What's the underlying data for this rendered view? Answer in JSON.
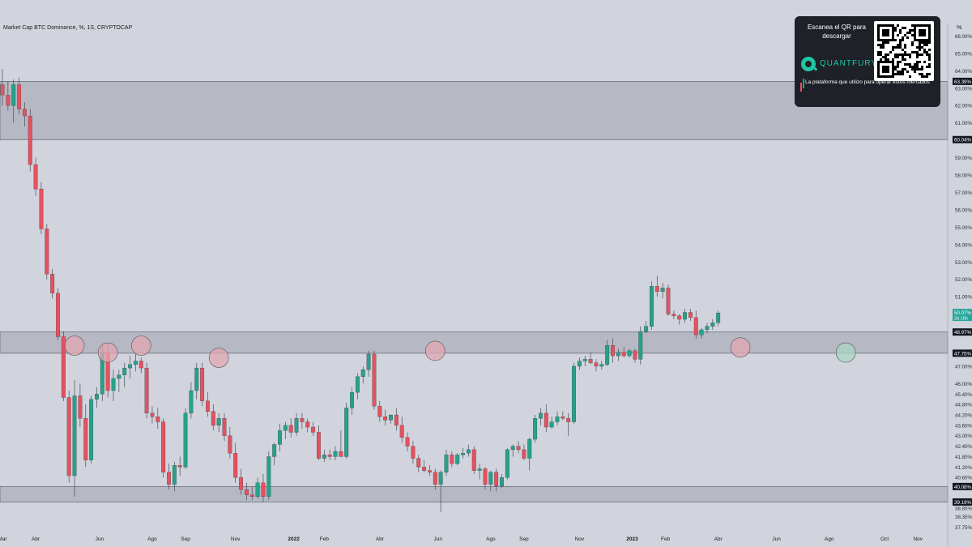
{
  "chart_title": "Market Cap BTC Dominance, %, 1S, CRYPTOCAP",
  "unit_label": "%",
  "promo": {
    "heading": "Escanea el QR para descargar",
    "brand": "QUANTFURY",
    "tagline": "La plataforma que utilizo para operar estos mercados",
    "icon": "quantfury-logo-icon"
  },
  "colors": {
    "background": "#d1d4dc",
    "bull": "#26a18a",
    "bear": "#e5515f",
    "zone": "#b6b9c3",
    "marker_red": "#e2a7b1",
    "marker_green": "#a9d6c1",
    "label_dark": "#131722",
    "price_label": "#26a69a"
  },
  "chart_data": {
    "type": "candlestick",
    "timeframe": "1S",
    "y_axis_unit": "%",
    "y_range": [
      37.3,
      66.3
    ],
    "y_ticks": [
      "37.75%",
      "38.35%",
      "38.85%",
      "39.40%",
      "40.60%",
      "41.20%",
      "41.80%",
      "42.40%",
      "43.00%",
      "43.60%",
      "44.20%",
      "44.80%",
      "45.40%",
      "46.00%",
      "47.00%",
      "48.00%",
      "49.00%",
      "50.00%",
      "51.00%",
      "52.00%",
      "53.00%",
      "54.00%",
      "55.00%",
      "56.00%",
      "57.00%",
      "58.00%",
      "59.00%",
      "61.00%",
      "62.00%",
      "63.00%",
      "64.00%",
      "65.00%",
      "66.00%"
    ],
    "y_tick_values": [
      37.75,
      38.35,
      38.85,
      39.4,
      40.6,
      41.2,
      41.8,
      42.4,
      43.0,
      43.6,
      44.2,
      44.8,
      45.4,
      46.0,
      47.0,
      48.0,
      49.0,
      50.0,
      51.0,
      52.0,
      53.0,
      54.0,
      55.0,
      56.0,
      57.0,
      58.0,
      59.0,
      61.0,
      62.0,
      63.0,
      64.0,
      65.0,
      66.0
    ],
    "x_labels": [
      {
        "t": 0,
        "label": "Mar",
        "bold": false
      },
      {
        "t": 6,
        "label": "Abr",
        "bold": false
      },
      {
        "t": 17.5,
        "label": "Jun",
        "bold": false
      },
      {
        "t": 27,
        "label": "Ago",
        "bold": false
      },
      {
        "t": 33,
        "label": "Sep",
        "bold": false
      },
      {
        "t": 42,
        "label": "Nov",
        "bold": false
      },
      {
        "t": 52.5,
        "label": "2022",
        "bold": true
      },
      {
        "t": 58,
        "label": "Feb",
        "bold": false
      },
      {
        "t": 68,
        "label": "Abr",
        "bold": false
      },
      {
        "t": 78.5,
        "label": "Jun",
        "bold": false
      },
      {
        "t": 88,
        "label": "Ago",
        "bold": false
      },
      {
        "t": 94,
        "label": "Sep",
        "bold": false
      },
      {
        "t": 104,
        "label": "Nov",
        "bold": false
      },
      {
        "t": 113.5,
        "label": "2023",
        "bold": true
      },
      {
        "t": 119.5,
        "label": "Feb",
        "bold": false
      },
      {
        "t": 129,
        "label": "Abr",
        "bold": false
      },
      {
        "t": 139.5,
        "label": "Jun",
        "bold": false
      },
      {
        "t": 149,
        "label": "Ago",
        "bold": false
      },
      {
        "t": 159,
        "label": "Oct",
        "bold": false
      },
      {
        "t": 165,
        "label": "Nov",
        "bold": false
      }
    ],
    "zones": [
      {
        "low": 60.04,
        "high": 63.39,
        "low_label": "60.04%",
        "high_label": "63.39%"
      },
      {
        "low": 47.75,
        "high": 48.97,
        "low_label": "47.75%",
        "high_label": "48.97%"
      },
      {
        "low": 39.19,
        "high": 40.08,
        "low_label": "39.19%",
        "high_label": "40.08%"
      }
    ],
    "last_price": {
      "value": 50.07,
      "label": "50.07%",
      "countdown": "2d 15h"
    },
    "marked_touches": [
      {
        "t": 13,
        "y": 48.0,
        "color": "red"
      },
      {
        "t": 19,
        "y": 47.6,
        "color": "red"
      },
      {
        "t": 25,
        "y": 48.0,
        "color": "red"
      },
      {
        "t": 39,
        "y": 47.3,
        "color": "red"
      },
      {
        "t": 78,
        "y": 47.7,
        "color": "red"
      },
      {
        "t": 133,
        "y": 47.9,
        "color": "red"
      },
      {
        "t": 152,
        "y": 47.6,
        "color": "green"
      }
    ],
    "candles": [
      [
        63.2,
        64.1,
        62.0,
        62.6
      ],
      [
        62.6,
        63.4,
        61.7,
        62.0
      ],
      [
        62.0,
        63.5,
        61.0,
        63.2
      ],
      [
        63.2,
        63.6,
        61.5,
        61.8
      ],
      [
        61.8,
        62.2,
        60.8,
        61.4
      ],
      [
        61.4,
        61.8,
        58.2,
        58.6
      ],
      [
        58.6,
        59.0,
        56.8,
        57.2
      ],
      [
        57.2,
        57.6,
        54.6,
        54.9
      ],
      [
        54.9,
        55.2,
        52.0,
        52.3
      ],
      [
        52.3,
        52.6,
        50.9,
        51.2
      ],
      [
        51.2,
        51.5,
        48.5,
        48.7
      ],
      [
        48.7,
        49.0,
        45.0,
        45.2
      ],
      [
        45.2,
        45.6,
        40.3,
        40.7
      ],
      [
        40.7,
        46.2,
        39.5,
        45.3
      ],
      [
        45.3,
        46.0,
        43.5,
        44.0
      ],
      [
        44.0,
        44.8,
        41.2,
        41.6
      ],
      [
        41.6,
        45.3,
        41.4,
        45.1
      ],
      [
        45.1,
        45.8,
        44.6,
        45.4
      ],
      [
        45.4,
        48.2,
        45.0,
        47.8
      ],
      [
        47.8,
        48.3,
        45.2,
        45.6
      ],
      [
        45.6,
        46.8,
        45.0,
        46.3
      ],
      [
        46.3,
        46.8,
        45.5,
        46.5
      ],
      [
        46.5,
        47.2,
        45.8,
        46.9
      ],
      [
        46.9,
        47.6,
        46.3,
        47.1
      ],
      [
        47.1,
        47.7,
        46.7,
        47.3
      ],
      [
        47.3,
        47.5,
        46.6,
        46.9
      ],
      [
        46.9,
        47.2,
        44.0,
        44.3
      ],
      [
        44.3,
        44.7,
        43.7,
        44.1
      ],
      [
        44.1,
        44.6,
        43.4,
        43.8
      ],
      [
        43.8,
        44.0,
        40.6,
        40.9
      ],
      [
        40.9,
        41.4,
        39.9,
        40.2
      ],
      [
        40.2,
        41.5,
        39.8,
        41.3
      ],
      [
        41.3,
        41.8,
        40.7,
        41.2
      ],
      [
        41.2,
        44.6,
        41.1,
        44.3
      ],
      [
        44.3,
        46.1,
        44.0,
        45.6
      ],
      [
        45.6,
        47.2,
        45.1,
        46.9
      ],
      [
        46.9,
        47.2,
        44.7,
        45.0
      ],
      [
        45.0,
        45.5,
        44.1,
        44.4
      ],
      [
        44.4,
        44.8,
        43.3,
        43.6
      ],
      [
        43.6,
        44.3,
        43.2,
        44.0
      ],
      [
        44.0,
        44.3,
        42.7,
        43.0
      ],
      [
        43.0,
        43.5,
        41.7,
        42.0
      ],
      [
        42.0,
        42.6,
        40.3,
        40.6
      ],
      [
        40.6,
        41.1,
        39.6,
        39.9
      ],
      [
        39.9,
        40.3,
        39.3,
        39.6
      ],
      [
        39.6,
        40.1,
        39.3,
        39.5
      ],
      [
        39.5,
        40.6,
        39.4,
        40.3
      ],
      [
        40.3,
        40.8,
        39.2,
        39.5
      ],
      [
        39.5,
        42.1,
        39.3,
        41.8
      ],
      [
        41.8,
        42.6,
        41.3,
        42.5
      ],
      [
        42.5,
        43.7,
        42.1,
        43.3
      ],
      [
        43.3,
        43.8,
        42.8,
        43.6
      ],
      [
        43.6,
        44.0,
        42.9,
        43.2
      ],
      [
        43.2,
        44.3,
        43.0,
        44.0
      ],
      [
        44.0,
        44.3,
        43.4,
        43.8
      ],
      [
        43.8,
        44.0,
        43.2,
        43.5
      ],
      [
        43.5,
        43.8,
        43.0,
        43.2
      ],
      [
        43.2,
        43.6,
        41.6,
        41.7
      ],
      [
        41.7,
        42.2,
        41.5,
        41.9
      ],
      [
        41.9,
        42.2,
        41.6,
        41.8
      ],
      [
        41.8,
        42.4,
        41.6,
        42.1
      ],
      [
        42.1,
        43.3,
        41.9,
        41.8
      ],
      [
        41.8,
        44.9,
        41.7,
        44.6
      ],
      [
        44.6,
        45.8,
        44.2,
        45.5
      ],
      [
        45.5,
        46.6,
        45.1,
        46.4
      ],
      [
        46.4,
        47.0,
        46.0,
        46.8
      ],
      [
        46.8,
        47.9,
        46.4,
        47.7
      ],
      [
        47.7,
        47.9,
        44.5,
        44.7
      ],
      [
        44.7,
        45.0,
        43.8,
        44.1
      ],
      [
        44.1,
        44.5,
        43.6,
        43.9
      ],
      [
        43.9,
        44.2,
        43.7,
        44.2
      ],
      [
        44.2,
        44.6,
        43.3,
        43.6
      ],
      [
        43.6,
        44.1,
        42.6,
        42.9
      ],
      [
        42.9,
        43.2,
        42.1,
        42.4
      ],
      [
        42.4,
        42.7,
        41.4,
        41.7
      ],
      [
        41.7,
        41.9,
        40.9,
        41.2
      ],
      [
        41.2,
        41.6,
        40.9,
        41.0
      ],
      [
        41.0,
        41.3,
        40.7,
        40.9
      ],
      [
        40.9,
        41.1,
        39.9,
        40.2
      ],
      [
        40.2,
        41.0,
        38.6,
        40.9
      ],
      [
        40.9,
        42.2,
        40.7,
        41.9
      ],
      [
        41.9,
        42.1,
        41.2,
        41.4
      ],
      [
        41.4,
        42.0,
        41.3,
        41.9
      ],
      [
        41.9,
        42.3,
        41.7,
        42.0
      ],
      [
        42.0,
        42.5,
        41.8,
        42.2
      ],
      [
        42.2,
        42.4,
        40.8,
        41.0
      ],
      [
        41.0,
        41.4,
        40.5,
        41.1
      ],
      [
        41.1,
        41.2,
        39.9,
        40.2
      ],
      [
        40.2,
        41.0,
        39.8,
        40.9
      ],
      [
        40.9,
        41.1,
        39.8,
        40.1
      ],
      [
        40.1,
        40.8,
        40.0,
        40.6
      ],
      [
        40.6,
        42.3,
        40.5,
        42.2
      ],
      [
        42.2,
        42.5,
        41.8,
        42.4
      ],
      [
        42.4,
        42.7,
        42.0,
        42.2
      ],
      [
        42.2,
        42.5,
        41.6,
        41.7
      ],
      [
        41.7,
        42.9,
        41.0,
        42.8
      ],
      [
        42.8,
        44.2,
        42.6,
        44.0
      ],
      [
        44.0,
        44.6,
        43.6,
        44.3
      ],
      [
        44.3,
        44.8,
        43.2,
        43.5
      ],
      [
        43.5,
        44.1,
        43.4,
        43.8
      ],
      [
        43.8,
        44.4,
        43.6,
        44.1
      ],
      [
        44.1,
        44.4,
        43.9,
        44.0
      ],
      [
        44.0,
        44.3,
        43.0,
        43.8
      ],
      [
        43.8,
        47.2,
        43.7,
        47.0
      ],
      [
        47.0,
        47.5,
        46.8,
        47.3
      ],
      [
        47.3,
        47.6,
        47.0,
        47.4
      ],
      [
        47.4,
        47.8,
        47.1,
        47.2
      ],
      [
        47.2,
        47.4,
        46.7,
        47.0
      ],
      [
        47.0,
        47.3,
        46.8,
        47.1
      ],
      [
        47.1,
        48.5,
        47.0,
        48.2
      ],
      [
        48.2,
        48.6,
        47.2,
        47.6
      ],
      [
        47.6,
        48.0,
        47.3,
        47.8
      ],
      [
        47.8,
        48.1,
        47.5,
        47.6
      ],
      [
        47.6,
        48.0,
        47.5,
        47.9
      ],
      [
        47.9,
        48.0,
        47.2,
        47.4
      ],
      [
        47.4,
        49.3,
        47.1,
        49.0
      ],
      [
        49.0,
        49.6,
        48.9,
        49.3
      ],
      [
        49.3,
        51.9,
        49.1,
        51.6
      ],
      [
        51.6,
        52.2,
        51.0,
        51.3
      ],
      [
        51.3,
        51.8,
        50.9,
        51.5
      ],
      [
        51.5,
        51.7,
        49.9,
        50.0
      ],
      [
        50.0,
        50.2,
        49.7,
        49.9
      ],
      [
        49.9,
        50.0,
        49.4,
        49.7
      ],
      [
        49.7,
        50.3,
        49.5,
        50.1
      ],
      [
        50.1,
        50.3,
        49.6,
        49.8
      ],
      [
        49.8,
        50.2,
        48.6,
        48.8
      ],
      [
        48.8,
        49.2,
        48.6,
        49.1
      ],
      [
        49.1,
        49.5,
        48.9,
        49.3
      ],
      [
        49.3,
        49.7,
        49.1,
        49.5
      ],
      [
        49.5,
        50.2,
        49.3,
        50.07
      ]
    ]
  }
}
